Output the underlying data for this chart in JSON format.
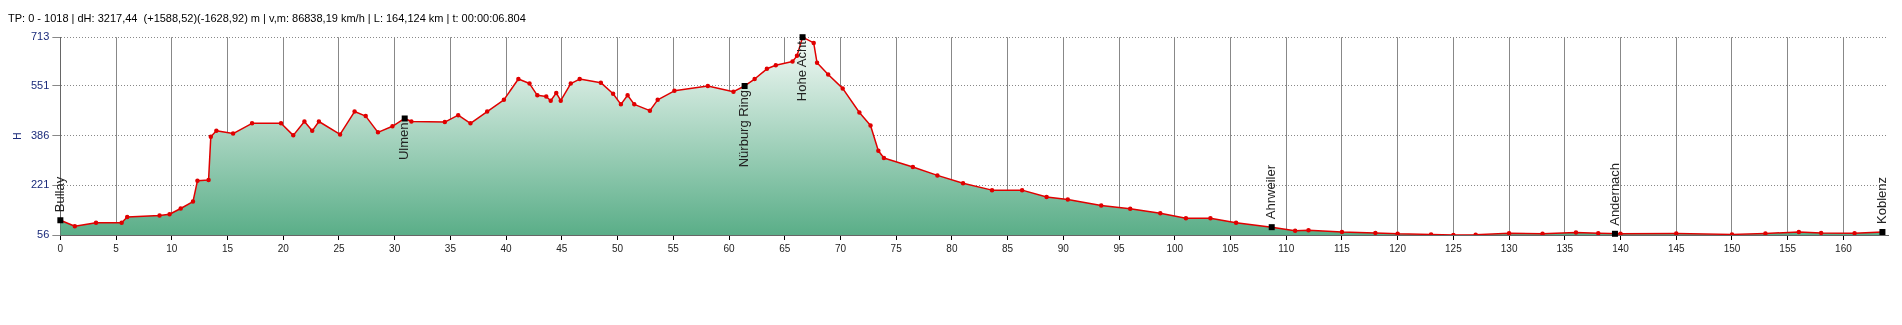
{
  "chart_data": {
    "type": "area",
    "title": "TP: 0 - 1018 | dH: 3217,44  (+1588,52)(-1628,92) m | v,m: 86838,19 km/h | L: 164,124 km | t: 00:00:06.804",
    "ylabel": "H",
    "xlim": [
      0,
      164
    ],
    "xticks": [
      0,
      5,
      10,
      15,
      20,
      25,
      30,
      35,
      40,
      45,
      50,
      55,
      60,
      65,
      70,
      75,
      80,
      85,
      90,
      95,
      100,
      105,
      110,
      115,
      120,
      125,
      130,
      135,
      140,
      145,
      150,
      155,
      160
    ],
    "ylim": [
      56,
      713
    ],
    "yticks": [
      56,
      221,
      386,
      551,
      713
    ],
    "grid": true,
    "legend": false,
    "marker": "circle",
    "line_style": "solid",
    "series": [
      {
        "color": "#e00000",
        "x": [
          0,
          1.3,
          3.2,
          5.5,
          6,
          8.9,
          9.8,
          10.8,
          11.9,
          12.3,
          13.3,
          13.5,
          14,
          15.5,
          17.2,
          19.8,
          20.9,
          21.9,
          22.6,
          23.2,
          25.1,
          26.4,
          27.4,
          28.5,
          29.8,
          30.9,
          31.5,
          34.5,
          35.7,
          36.8,
          38.3,
          39.8,
          41.1,
          42.1,
          42.8,
          43.6,
          44,
          44.5,
          44.9,
          45.8,
          46.6,
          48.5,
          49.6,
          50.3,
          50.9,
          51.5,
          52.9,
          53.6,
          55.1,
          58.1,
          60.4,
          61.4,
          62.3,
          63.4,
          64.2,
          65.7,
          66.1,
          66.6,
          67.6,
          67.9,
          68.9,
          70.2,
          71.7,
          72.7,
          73.4,
          73.9,
          76.5,
          78.7,
          81,
          83.6,
          86.3,
          88.5,
          90.4,
          93.4,
          96,
          98.7,
          101,
          103.2,
          105.5,
          108.7,
          110.8,
          112,
          115,
          118,
          120,
          123,
          125,
          127,
          130,
          133,
          136,
          138,
          140,
          145,
          150,
          153,
          156,
          158,
          161,
          163.5
        ],
        "values": [
          105,
          85,
          97,
          97,
          116,
          121,
          125,
          144,
          167,
          236,
          239,
          382,
          402,
          393,
          427,
          427,
          387,
          433,
          402,
          433,
          390,
          466,
          451,
          397,
          417,
          443,
          433,
          431,
          454,
          427,
          466,
          505,
          574,
          559,
          520,
          516,
          502,
          528,
          502,
          559,
          574,
          562,
          525,
          490,
          520,
          490,
          469,
          505,
          535,
          551,
          532,
          551,
          574,
          608,
          620,
          632,
          651,
          713,
          694,
          628,
          589,
          543,
          463,
          420,
          336,
          312,
          282,
          254,
          228,
          205,
          205,
          182,
          174,
          154,
          143,
          128,
          112,
          112,
          97,
          82,
          70,
          72,
          66,
          63,
          60,
          58,
          56,
          57,
          62,
          60,
          64,
          62,
          60,
          61,
          58,
          61,
          66,
          63,
          62,
          66
        ]
      }
    ],
    "annotations": [
      {
        "text": "Bullay",
        "x": 0,
        "y": 105
      },
      {
        "text": "Ulmen",
        "x": 30.9,
        "y": 443
      },
      {
        "text": "Nürburg Ring",
        "x": 61.4,
        "y": 551
      },
      {
        "text": "Hohe Acht",
        "x": 66.6,
        "y": 713
      },
      {
        "text": "Ahrweiler",
        "x": 108.7,
        "y": 82
      },
      {
        "text": "Andernach",
        "x": 139.5,
        "y": 60
      },
      {
        "text": "Koblenz",
        "x": 163.5,
        "y": 66
      }
    ]
  }
}
